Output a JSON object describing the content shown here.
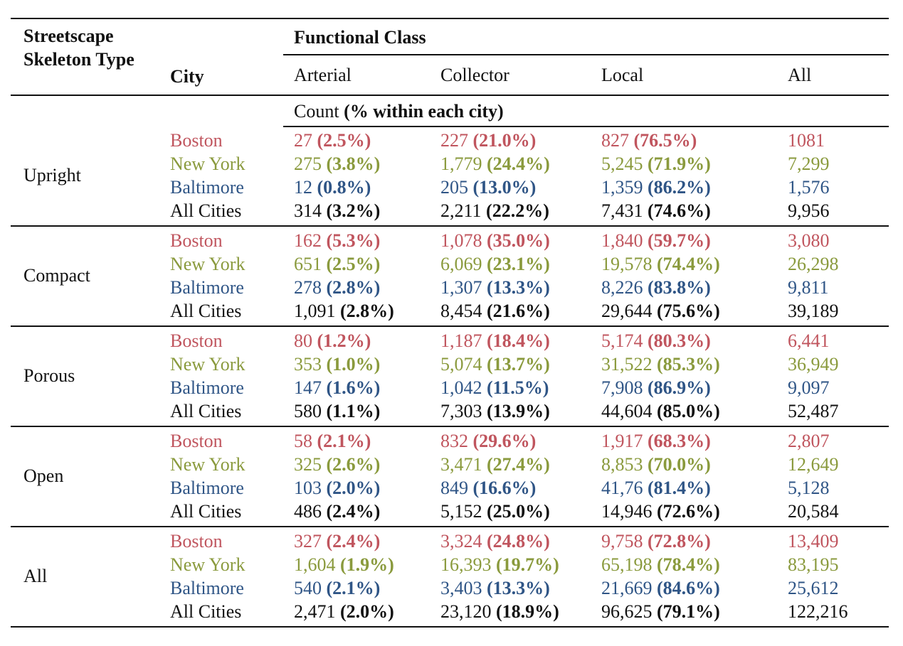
{
  "header": {
    "type_label": "Streetscape Skeleton Type",
    "city_label": "City",
    "functional_class": "Functional Class",
    "columns": [
      "Arterial",
      "Collector",
      "Local",
      "All"
    ],
    "count_label": "Count",
    "count_note": "(% within each city)"
  },
  "colors": {
    "boston": "#c0555e",
    "new_york": "#8a9a3d",
    "baltimore": "#2f5586",
    "all_cities": "#111111"
  },
  "groups": [
    {
      "type": "Upright",
      "rows": [
        {
          "city": "Boston",
          "arterial": [
            "27",
            "(2.5%)"
          ],
          "collector": [
            "227",
            "(21.0%)"
          ],
          "local": [
            "827",
            "(76.5%)"
          ],
          "all": "1081"
        },
        {
          "city": "New York",
          "arterial": [
            "275",
            "(3.8%)"
          ],
          "collector": [
            "1,779",
            "(24.4%)"
          ],
          "local": [
            "5,245",
            "(71.9%)"
          ],
          "all": "7,299"
        },
        {
          "city": "Baltimore",
          "arterial": [
            "12",
            "(0.8%)"
          ],
          "collector": [
            "205",
            "(13.0%)"
          ],
          "local": [
            "1,359",
            "(86.2%)"
          ],
          "all": "1,576"
        },
        {
          "city": "All Cities",
          "arterial": [
            "314",
            "(3.2%)"
          ],
          "collector": [
            "2,211",
            "(22.2%)"
          ],
          "local": [
            "7,431",
            "(74.6%)"
          ],
          "all": "9,956"
        }
      ]
    },
    {
      "type": "Compact",
      "rows": [
        {
          "city": "Boston",
          "arterial": [
            "162",
            "(5.3%)"
          ],
          "collector": [
            "1,078",
            "(35.0%)"
          ],
          "local": [
            "1,840",
            "(59.7%)"
          ],
          "all": "3,080"
        },
        {
          "city": "New York",
          "arterial": [
            "651",
            "(2.5%)"
          ],
          "collector": [
            "6,069",
            "(23.1%)"
          ],
          "local": [
            "19,578",
            "(74.4%)"
          ],
          "all": "26,298"
        },
        {
          "city": "Baltimore",
          "arterial": [
            "278",
            "(2.8%)"
          ],
          "collector": [
            "1,307",
            "(13.3%)"
          ],
          "local": [
            "8,226",
            "(83.8%)"
          ],
          "all": "9,811"
        },
        {
          "city": "All Cities",
          "arterial": [
            "1,091",
            "(2.8%)"
          ],
          "collector": [
            "8,454",
            "(21.6%)"
          ],
          "local": [
            "29,644",
            "(75.6%)"
          ],
          "all": "39,189"
        }
      ]
    },
    {
      "type": "Porous",
      "rows": [
        {
          "city": "Boston",
          "arterial": [
            "80",
            "(1.2%)"
          ],
          "collector": [
            "1,187",
            "(18.4%)"
          ],
          "local": [
            "5,174",
            "(80.3%)"
          ],
          "all": "6,441"
        },
        {
          "city": "New York",
          "arterial": [
            "353",
            "(1.0%)"
          ],
          "collector": [
            "5,074",
            "(13.7%)"
          ],
          "local": [
            "31,522",
            "(85.3%)"
          ],
          "all": "36,949"
        },
        {
          "city": "Baltimore",
          "arterial": [
            "147",
            "(1.6%)"
          ],
          "collector": [
            "1,042",
            "(11.5%)"
          ],
          "local": [
            "7,908",
            "(86.9%)"
          ],
          "all": "9,097"
        },
        {
          "city": "All Cities",
          "arterial": [
            "580",
            "(1.1%)"
          ],
          "collector": [
            "7,303",
            "(13.9%)"
          ],
          "local": [
            "44,604",
            "(85.0%)"
          ],
          "all": "52,487"
        }
      ]
    },
    {
      "type": "Open",
      "rows": [
        {
          "city": "Boston",
          "arterial": [
            "58",
            "(2.1%)"
          ],
          "collector": [
            "832",
            "(29.6%)"
          ],
          "local": [
            "1,917",
            "(68.3%)"
          ],
          "all": "2,807"
        },
        {
          "city": "New York",
          "arterial": [
            "325",
            "(2.6%)"
          ],
          "collector": [
            "3,471",
            "(27.4%)"
          ],
          "local": [
            "8,853",
            "(70.0%)"
          ],
          "all": "12,649"
        },
        {
          "city": "Baltimore",
          "arterial": [
            "103",
            "(2.0%)"
          ],
          "collector": [
            "849",
            "(16.6%)"
          ],
          "local": [
            "41,76",
            "(81.4%)"
          ],
          "all": "5,128"
        },
        {
          "city": "All Cities",
          "arterial": [
            "486",
            "(2.4%)"
          ],
          "collector": [
            "5,152",
            "(25.0%)"
          ],
          "local": [
            "14,946",
            "(72.6%)"
          ],
          "all": "20,584"
        }
      ]
    },
    {
      "type": "All",
      "rows": [
        {
          "city": "Boston",
          "arterial": [
            "327",
            "(2.4%)"
          ],
          "collector": [
            "3,324",
            "(24.8%)"
          ],
          "local": [
            "9,758",
            "(72.8%)"
          ],
          "all": "13,409"
        },
        {
          "city": "New York",
          "arterial": [
            "1,604",
            "(1.9%)"
          ],
          "collector": [
            "16,393",
            "(19.7%)"
          ],
          "local": [
            "65,198",
            "(78.4%)"
          ],
          "all": "83,195"
        },
        {
          "city": "Baltimore",
          "arterial": [
            "540",
            "(2.1%)"
          ],
          "collector": [
            "3,403",
            "(13.3%)"
          ],
          "local": [
            "21,669",
            "(84.6%)"
          ],
          "all": "25,612"
        },
        {
          "city": "All Cities",
          "arterial": [
            "2,471",
            "(2.0%)"
          ],
          "collector": [
            "23,120",
            "(18.9%)"
          ],
          "local": [
            "96,625",
            "(79.1%)"
          ],
          "all": "122,216"
        }
      ]
    }
  ]
}
